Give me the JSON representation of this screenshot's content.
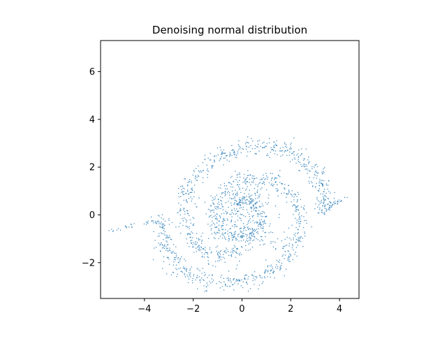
{
  "chart_data": {
    "type": "scatter",
    "title": "Denoising normal distribution",
    "xlabel": "",
    "ylabel": "",
    "xlim": [
      -5.8,
      4.8
    ],
    "ylim": [
      -3.5,
      7.3
    ],
    "x_ticks": [
      -4,
      -2,
      0,
      2,
      4
    ],
    "y_ticks": [
      -2,
      0,
      2,
      4,
      6
    ],
    "x_tick_labels": [
      "−4",
      "−2",
      "0",
      "2",
      "4"
    ],
    "y_tick_labels": [
      "−2",
      "0",
      "2",
      "4",
      "6"
    ],
    "grid": false,
    "legend": "none",
    "marker_color": "#1f77b4",
    "spiral_arms": [
      {
        "points": [
          [
            3.3,
            0.1
          ],
          [
            3.4,
            0.6
          ],
          [
            3.3,
            1.2
          ],
          [
            3.0,
            1.8
          ],
          [
            2.5,
            2.3
          ],
          [
            1.8,
            2.7
          ],
          [
            1.0,
            2.9
          ],
          [
            0.2,
            2.85
          ],
          [
            -0.6,
            2.6
          ],
          [
            -1.3,
            2.2
          ],
          [
            -1.9,
            1.6
          ],
          [
            -2.3,
            0.9
          ],
          [
            -2.4,
            0.2
          ],
          [
            -2.3,
            -0.5
          ],
          [
            -2.0,
            -1.1
          ],
          [
            -1.6,
            -1.5
          ],
          [
            -1.0,
            -1.7
          ],
          [
            -0.4,
            -1.6
          ],
          [
            0.1,
            -1.3
          ],
          [
            0.5,
            -0.9
          ],
          [
            0.7,
            -0.4
          ],
          [
            0.7,
            0.1
          ],
          [
            0.5,
            0.5
          ],
          [
            0.2,
            0.65
          ],
          [
            -0.1,
            0.6
          ],
          [
            -0.3,
            0.3
          ]
        ]
      },
      {
        "points": [
          [
            -3.3,
            -0.2
          ],
          [
            -3.3,
            -0.8
          ],
          [
            -3.1,
            -1.5
          ],
          [
            -2.7,
            -2.1
          ],
          [
            -2.1,
            -2.5
          ],
          [
            -1.3,
            -2.8
          ],
          [
            -0.4,
            -2.8
          ],
          [
            0.4,
            -2.7
          ],
          [
            1.2,
            -2.4
          ],
          [
            1.8,
            -1.9
          ],
          [
            2.2,
            -1.2
          ],
          [
            2.4,
            -0.5
          ],
          [
            2.3,
            0.2
          ],
          [
            2.0,
            0.8
          ],
          [
            1.5,
            1.3
          ],
          [
            0.9,
            1.5
          ],
          [
            0.2,
            1.5
          ],
          [
            -0.4,
            1.3
          ],
          [
            -0.9,
            0.8
          ],
          [
            -1.1,
            0.3
          ],
          [
            -1.0,
            -0.3
          ],
          [
            -0.8,
            -0.7
          ],
          [
            -0.4,
            -0.9
          ],
          [
            0.0,
            -0.8
          ],
          [
            0.3,
            -0.5
          ]
        ]
      }
    ],
    "tails": [
      {
        "points": [
          [
            -5.5,
            -0.7
          ],
          [
            -4.5,
            -0.45
          ],
          [
            -3.4,
            -0.22
          ]
        ]
      },
      {
        "points": [
          [
            3.4,
            0.2
          ],
          [
            3.8,
            0.45
          ],
          [
            4.3,
            0.75
          ]
        ]
      }
    ],
    "core_points": [
      [
        0.0,
        0.0
      ],
      [
        -0.3,
        0.2
      ],
      [
        0.2,
        -0.2
      ],
      [
        0.4,
        0.3
      ],
      [
        -0.2,
        -0.4
      ],
      [
        0.1,
        0.5
      ],
      [
        -0.5,
        0.1
      ],
      [
        0.6,
        -0.1
      ],
      [
        0.3,
        -0.6
      ],
      [
        -0.4,
        0.7
      ],
      [
        0.8,
        0.4
      ],
      [
        -0.7,
        -0.5
      ],
      [
        1.0,
        0.9
      ],
      [
        -1.0,
        -1.0
      ],
      [
        0.5,
        1.0
      ],
      [
        -0.9,
        0.6
      ],
      [
        1.2,
        -0.8
      ],
      [
        -1.3,
        0.0
      ],
      [
        0.0,
        1.1
      ],
      [
        0.9,
        -1.1
      ]
    ]
  }
}
